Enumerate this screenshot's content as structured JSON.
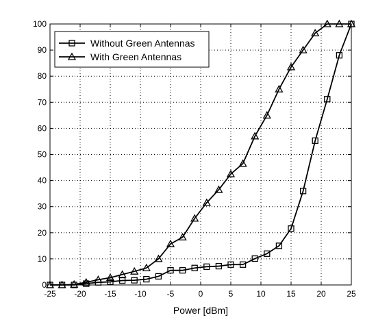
{
  "chart_data": {
    "type": "line",
    "title": "",
    "xlabel": "Power [dBm]",
    "ylabel": "",
    "xlim": [
      -25,
      25
    ],
    "ylim": [
      0,
      100
    ],
    "xticks": [
      -25,
      -20,
      -15,
      -10,
      -5,
      0,
      5,
      10,
      15,
      20,
      25
    ],
    "yticks": [
      0,
      10,
      20,
      30,
      40,
      50,
      60,
      70,
      80,
      90,
      100
    ],
    "grid": true,
    "legend_position": "top-left",
    "series": [
      {
        "name": "Without Green Antennas",
        "marker": "square",
        "color": "#000000",
        "x": [
          -25,
          -23,
          -21,
          -19,
          -17,
          -15,
          -13,
          -11,
          -9,
          -7,
          -5,
          -3,
          -1,
          1,
          3,
          5,
          7,
          9,
          11,
          13,
          15,
          17,
          19,
          21,
          23,
          25
        ],
        "y": [
          0,
          0,
          0,
          0.5,
          1,
          1.2,
          1.7,
          1.8,
          2.2,
          3.3,
          5.6,
          5.6,
          6.5,
          7,
          7.2,
          7.8,
          7.8,
          10.1,
          12,
          15,
          21.6,
          36,
          55.3,
          71.2,
          88,
          100
        ]
      },
      {
        "name": "With Green Antennas",
        "marker": "triangle",
        "color": "#000000",
        "x": [
          -25,
          -23,
          -21,
          -19,
          -17,
          -15,
          -13,
          -11,
          -9,
          -7,
          -5,
          -3,
          -1,
          1,
          3,
          5,
          7,
          9,
          11,
          13,
          15,
          17,
          19,
          21,
          23,
          25
        ],
        "y": [
          0,
          0,
          0.2,
          1,
          2,
          2.8,
          4,
          5.2,
          6.5,
          10,
          15.7,
          18.3,
          25.5,
          31.5,
          36.5,
          42.5,
          46.5,
          57,
          65,
          75,
          83.5,
          90,
          96.5,
          100,
          100,
          100
        ]
      }
    ]
  }
}
